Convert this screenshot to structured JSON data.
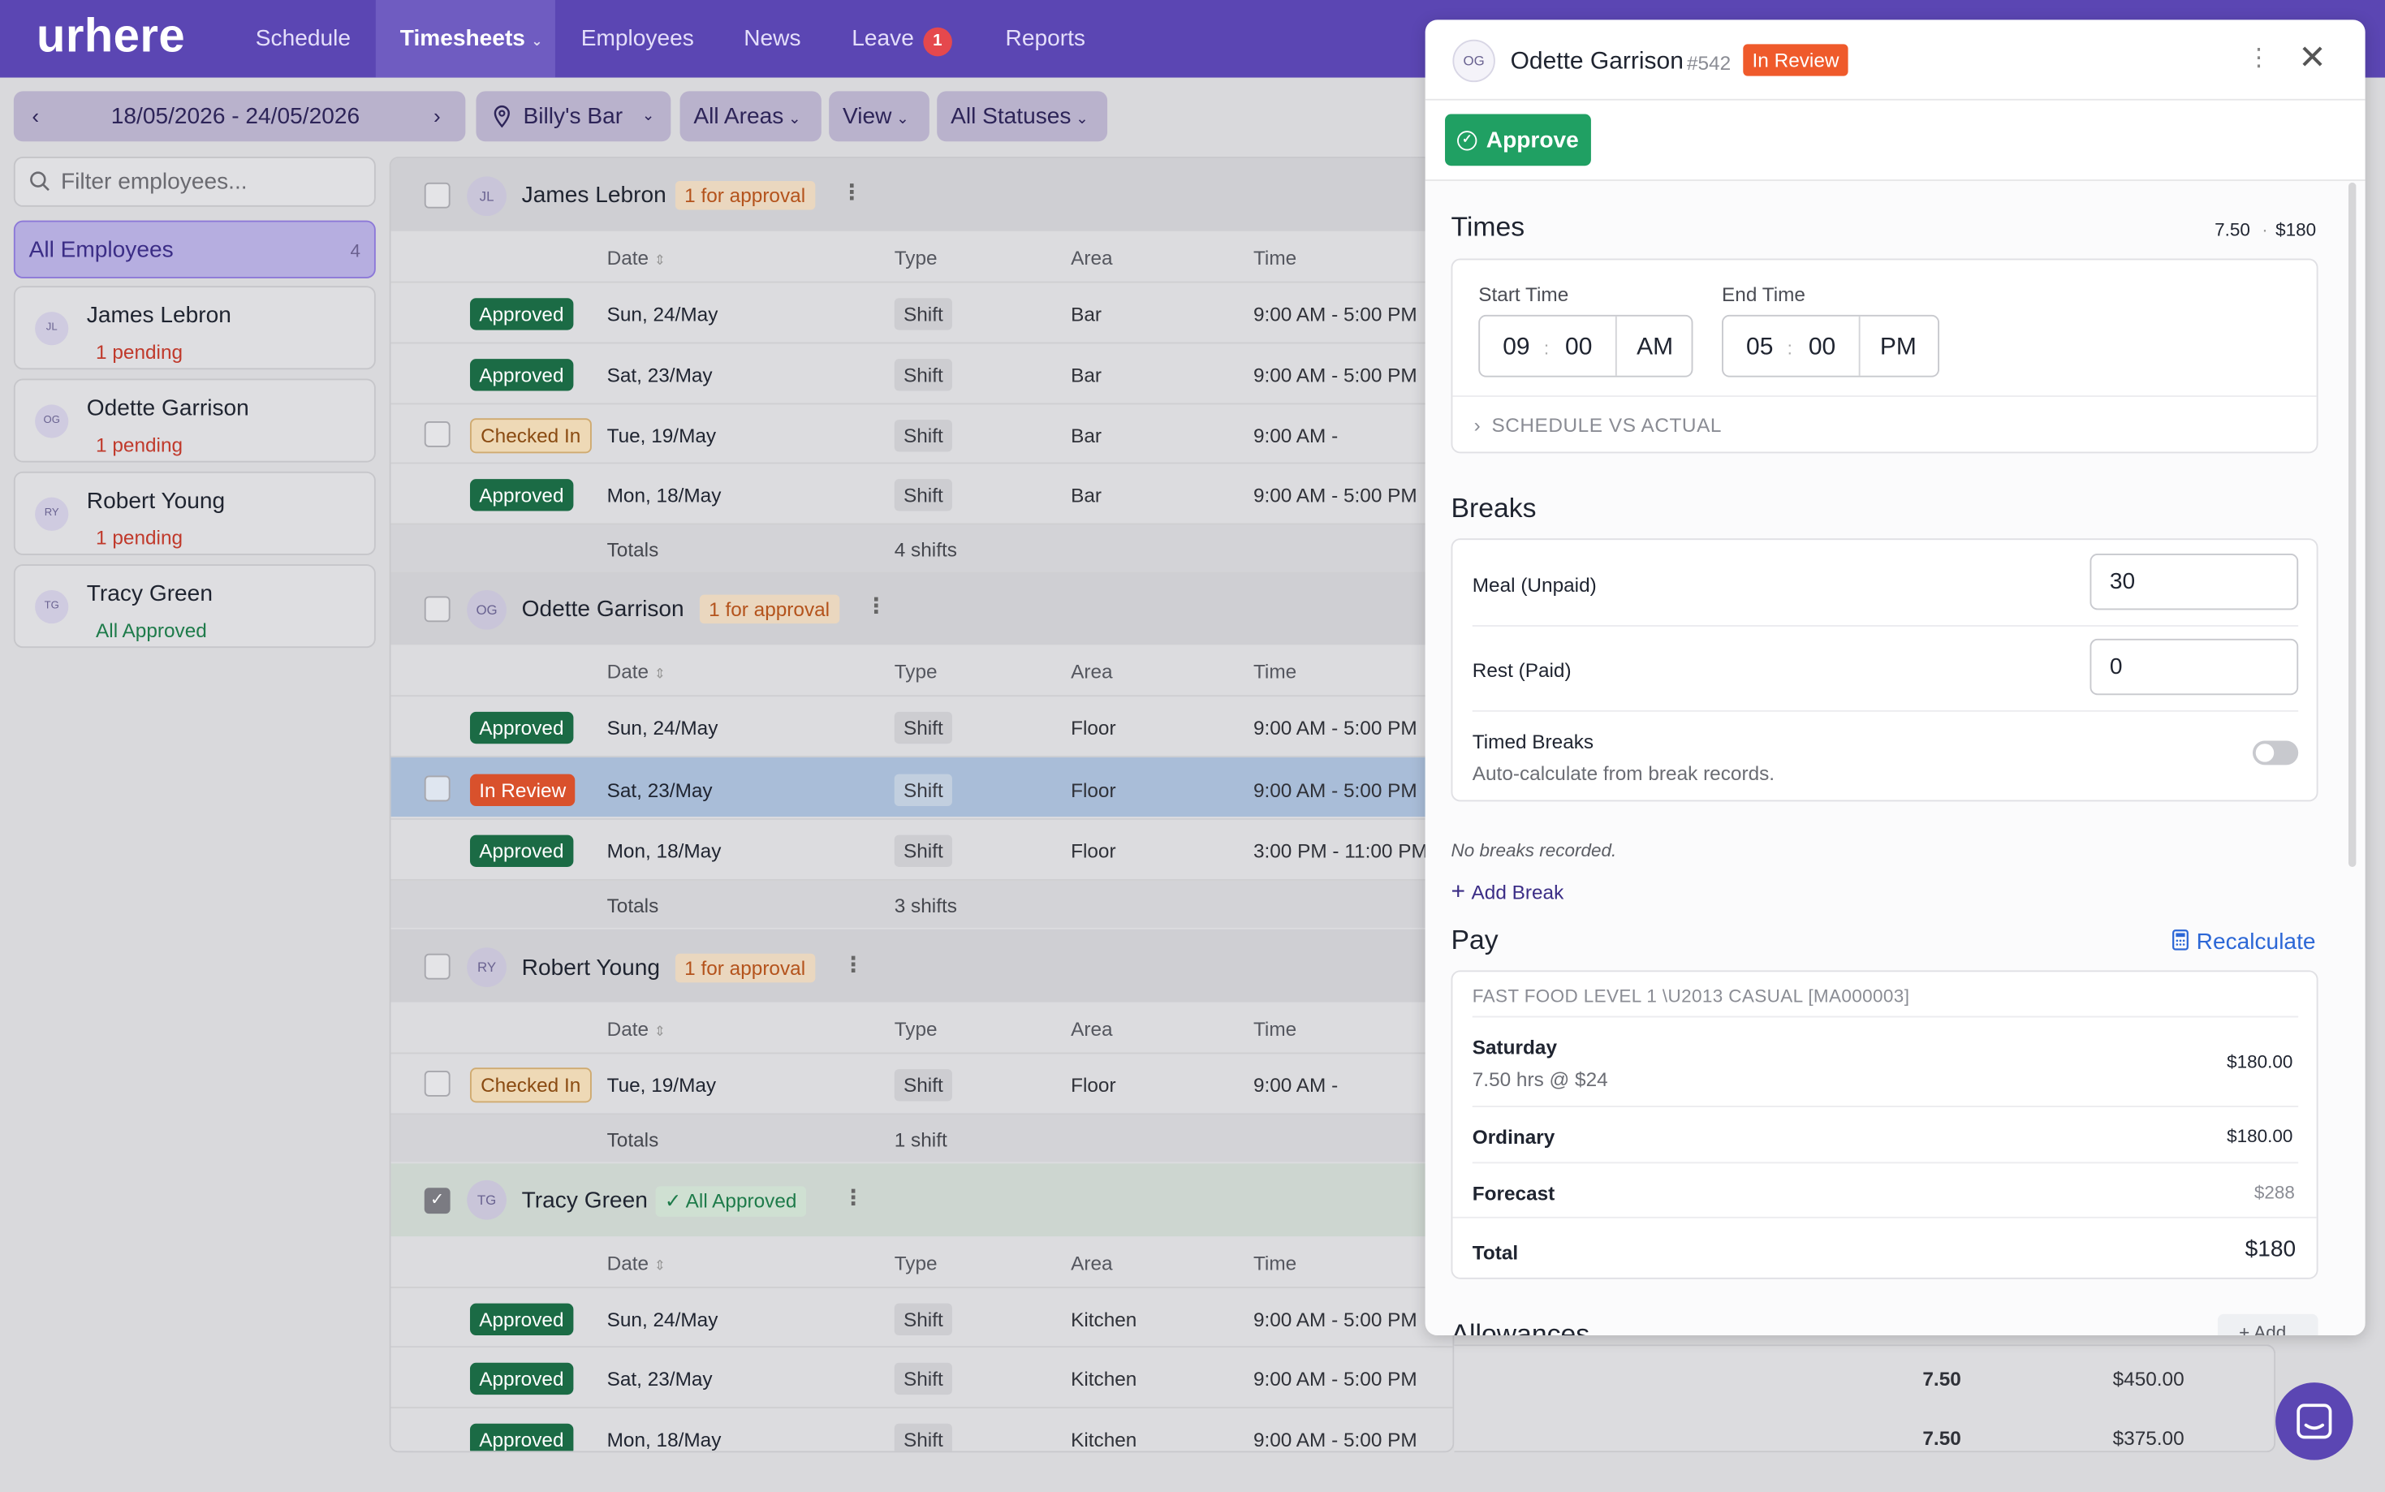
{
  "app": {
    "logo": "urhere"
  },
  "nav": {
    "items": [
      "Schedule",
      "Timesheets",
      "Employees",
      "News",
      "Leave",
      "Reports"
    ],
    "leave_badge": "1"
  },
  "toolbar": {
    "date_range": "18/05/2026 - 24/05/2026",
    "location": "Billy's Bar",
    "areas": "All Areas",
    "view": "View",
    "statuses": "All Statuses"
  },
  "sidebar": {
    "filter_placeholder": "Filter employees...",
    "all_label": "All Employees",
    "all_count": "4",
    "employees": [
      {
        "initials": "JL",
        "name": "James Lebron",
        "status": "1 pending"
      },
      {
        "initials": "OG",
        "name": "Odette Garrison",
        "status": "1 pending"
      },
      {
        "initials": "RY",
        "name": "Robert Young",
        "status": "1 pending"
      },
      {
        "initials": "TG",
        "name": "Tracy Green",
        "status": "All Approved"
      }
    ]
  },
  "columns": {
    "date": "Date",
    "type": "Type",
    "area": "Area",
    "time": "Time",
    "totals": "Totals"
  },
  "groups": [
    {
      "initials": "JL",
      "name": "James Lebron",
      "badge": "1 for approval",
      "totals": "4 shifts",
      "rows": [
        {
          "status": "Approved",
          "date": "Sun, 24/May",
          "type": "Shift",
          "area": "Bar",
          "time": "9:00 AM - 5:00 PM"
        },
        {
          "status": "Approved",
          "date": "Sat, 23/May",
          "type": "Shift",
          "area": "Bar",
          "time": "9:00 AM - 5:00 PM"
        },
        {
          "status": "Checked In",
          "date": "Tue, 19/May",
          "type": "Shift",
          "area": "Bar",
          "time": "9:00 AM -"
        },
        {
          "status": "Approved",
          "date": "Mon, 18/May",
          "type": "Shift",
          "area": "Bar",
          "time": "9:00 AM - 5:00 PM"
        }
      ]
    },
    {
      "initials": "OG",
      "name": "Odette Garrison",
      "badge": "1 for approval",
      "totals": "3 shifts",
      "rows": [
        {
          "status": "Approved",
          "date": "Sun, 24/May",
          "type": "Shift",
          "area": "Floor",
          "time": "9:00 AM - 5:00 PM"
        },
        {
          "status": "In Review",
          "date": "Sat, 23/May",
          "type": "Shift",
          "area": "Floor",
          "time": "9:00 AM - 5:00 PM"
        },
        {
          "status": "Approved",
          "date": "Mon, 18/May",
          "type": "Shift",
          "area": "Floor",
          "time": "3:00 PM - 11:00 PM"
        }
      ]
    },
    {
      "initials": "RY",
      "name": "Robert Young",
      "badge": "1 for approval",
      "totals": "1 shift",
      "rows": [
        {
          "status": "Checked In",
          "date": "Tue, 19/May",
          "type": "Shift",
          "area": "Floor",
          "time": "9:00 AM -"
        }
      ]
    },
    {
      "initials": "TG",
      "name": "Tracy Green",
      "badge": "All Approved",
      "rows": [
        {
          "status": "Approved",
          "date": "Sun, 24/May",
          "type": "Shift",
          "area": "Kitchen",
          "time": "9:00 AM - 5:00 PM"
        },
        {
          "status": "Approved",
          "date": "Sat, 23/May",
          "type": "Shift",
          "area": "Kitchen",
          "time": "9:00 AM - 5:00 PM",
          "hours": "7.50",
          "cost": "$450.00"
        },
        {
          "status": "Approved",
          "date": "Mon, 18/May",
          "type": "Shift",
          "area": "Kitchen",
          "time": "9:00 AM - 5:00 PM",
          "hours": "7.50",
          "cost": "$375.00"
        }
      ]
    }
  ],
  "drawer": {
    "initials": "OG",
    "name": "Odette Garrison",
    "id": "#542",
    "status": "In Review",
    "approve_label": "Approve",
    "times": {
      "title": "Times",
      "hours": "7.50",
      "amount": "$180",
      "start_label": "Start Time",
      "start_h": "09",
      "start_m": "00",
      "start_ampm": "AM",
      "end_label": "End Time",
      "end_h": "05",
      "end_m": "00",
      "end_ampm": "PM",
      "schedule_vs_actual": "SCHEDULE VS ACTUAL"
    },
    "breaks": {
      "title": "Breaks",
      "meal_label": "Meal (Unpaid)",
      "meal_value": "30",
      "rest_label": "Rest (Paid)",
      "rest_value": "0",
      "timed_label": "Timed Breaks",
      "timed_desc": "Auto-calculate from break records.",
      "none": "No breaks recorded.",
      "add": "Add Break"
    },
    "pay": {
      "title": "Pay",
      "recalc": "Recalculate",
      "award": "FAST FOOD LEVEL 1 \\U2013 CASUAL [MA000003]",
      "day_label": "Saturday",
      "day_detail": "7.50 hrs @ $24",
      "day_amount": "$180.00",
      "ordinary_label": "Ordinary",
      "ordinary_amount": "$180.00",
      "forecast_label": "Forecast",
      "forecast_amount": "$288",
      "total_label": "Total",
      "total_amount": "$180"
    },
    "allowances": {
      "title": "Allowances",
      "add": "+ Add"
    }
  }
}
